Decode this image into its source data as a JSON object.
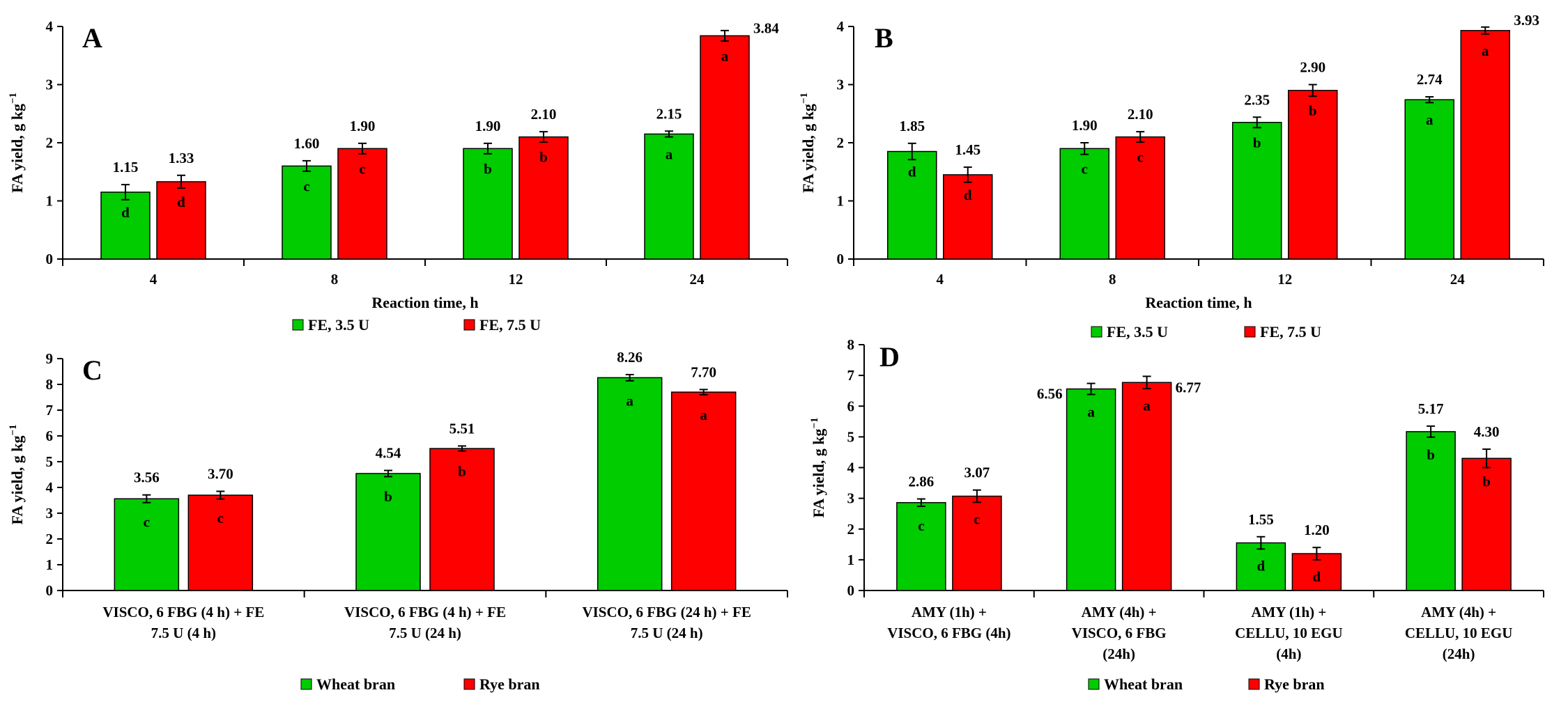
{
  "colors": {
    "series_a": "#00cc00",
    "series_b": "#ff0000",
    "err": "#000000"
  },
  "chart_data": [
    {
      "type": "bar",
      "panel_label": "A",
      "categories": [
        "4",
        "8",
        "12",
        "24"
      ],
      "xlabel": "Reaction time, h",
      "ylabel": "FA yield, g kg",
      "ylabel_sup": "−1",
      "ylim": [
        0,
        4
      ],
      "yticks": [
        0,
        1,
        2,
        3,
        4
      ],
      "series": [
        {
          "name": "FE, 3.5 U",
          "values": [
            1.15,
            1.6,
            1.9,
            2.15
          ],
          "labels": [
            "1.15",
            "1.60",
            "1.90",
            "2.15"
          ],
          "errors": [
            0.13,
            0.09,
            0.09,
            0.05
          ],
          "letters": [
            "d",
            "c",
            "b",
            "a"
          ]
        },
        {
          "name": "FE, 7.5 U",
          "values": [
            1.33,
            1.9,
            2.1,
            3.84
          ],
          "labels": [
            "1.33",
            "1.90",
            "2.10",
            "3.84"
          ],
          "errors": [
            0.11,
            0.09,
            0.09,
            0.09
          ],
          "letters": [
            "d",
            "c",
            "b",
            "a"
          ]
        }
      ],
      "legend": "bottom-center"
    },
    {
      "type": "bar",
      "panel_label": "B",
      "categories": [
        "4",
        "8",
        "12",
        "24"
      ],
      "xlabel": "Reaction time, h",
      "ylabel": "FA yield, g kg",
      "ylabel_sup": "−1",
      "ylim": [
        0,
        4
      ],
      "yticks": [
        0,
        1,
        2,
        3,
        4
      ],
      "series": [
        {
          "name": "FE, 3.5 U",
          "values": [
            1.85,
            1.9,
            2.35,
            2.74
          ],
          "labels": [
            "1.85",
            "1.90",
            "2.35",
            "2.74"
          ],
          "errors": [
            0.14,
            0.1,
            0.09,
            0.05
          ],
          "letters": [
            "d",
            "c",
            "b",
            "a"
          ]
        },
        {
          "name": "FE, 7.5 U",
          "values": [
            1.45,
            2.1,
            2.9,
            3.93
          ],
          "labels": [
            "1.45",
            "2.10",
            "2.90",
            "3.93"
          ],
          "errors": [
            0.13,
            0.09,
            0.1,
            0.06
          ],
          "letters": [
            "d",
            "c",
            "b",
            "a"
          ]
        }
      ],
      "legend": "bottom-center"
    },
    {
      "type": "bar",
      "panel_label": "C",
      "categories": [
        [
          "VISCO, 6 FBG (4 h) + FE",
          "7.5 U (4 h)"
        ],
        [
          "VISCO, 6 FBG (4 h) + FE",
          "7.5 U (24 h)"
        ],
        [
          "VISCO, 6 FBG (24 h) + FE",
          "7.5 U (24 h)"
        ]
      ],
      "xlabel": "",
      "ylabel": "FA yield, g kg",
      "ylabel_sup": "−1",
      "ylim": [
        0,
        9
      ],
      "yticks": [
        0,
        1,
        2,
        3,
        4,
        5,
        6,
        7,
        8,
        9
      ],
      "series": [
        {
          "name": "Wheat bran",
          "values": [
            3.56,
            4.54,
            8.26
          ],
          "labels": [
            "3.56",
            "4.54",
            "8.26"
          ],
          "errors": [
            0.15,
            0.12,
            0.12
          ],
          "letters": [
            "c",
            "b",
            "a"
          ]
        },
        {
          "name": "Rye bran",
          "values": [
            3.7,
            5.51,
            7.7
          ],
          "labels": [
            "3.70",
            "5.51",
            "7.70"
          ],
          "errors": [
            0.15,
            0.1,
            0.1
          ],
          "letters": [
            "c",
            "b",
            "a"
          ]
        }
      ],
      "legend": "bottom-center"
    },
    {
      "type": "bar",
      "panel_label": "D",
      "categories": [
        [
          "AMY (1h) +",
          "VISCO, 6 FBG (4h)"
        ],
        [
          "AMY (4h) +",
          "VISCO, 6 FBG",
          "(24h)"
        ],
        [
          "AMY (1h) +",
          "CELLU, 10 EGU",
          "(4h)"
        ],
        [
          "AMY (4h) +",
          "CELLU, 10 EGU",
          "(24h)"
        ]
      ],
      "xlabel": "",
      "ylabel": "FA yield, g kg",
      "ylabel_sup": "−1",
      "ylim": [
        0,
        8
      ],
      "yticks": [
        0,
        1,
        2,
        3,
        4,
        5,
        6,
        7,
        8
      ],
      "series": [
        {
          "name": "Wheat bran",
          "values": [
            2.86,
            6.56,
            1.55,
            5.17
          ],
          "labels": [
            "2.86",
            "6.56",
            "1.55",
            "5.17"
          ],
          "errors": [
            0.12,
            0.18,
            0.2,
            0.18
          ],
          "letters": [
            "c",
            "a",
            "d",
            "b"
          ]
        },
        {
          "name": "Rye bran",
          "values": [
            3.07,
            6.77,
            1.2,
            4.3
          ],
          "labels": [
            "3.07",
            "6.77",
            "1.20",
            "4.30"
          ],
          "errors": [
            0.2,
            0.2,
            0.2,
            0.3
          ],
          "letters": [
            "c",
            "a",
            "d",
            "b"
          ]
        }
      ],
      "legend": "bottom-center"
    }
  ]
}
